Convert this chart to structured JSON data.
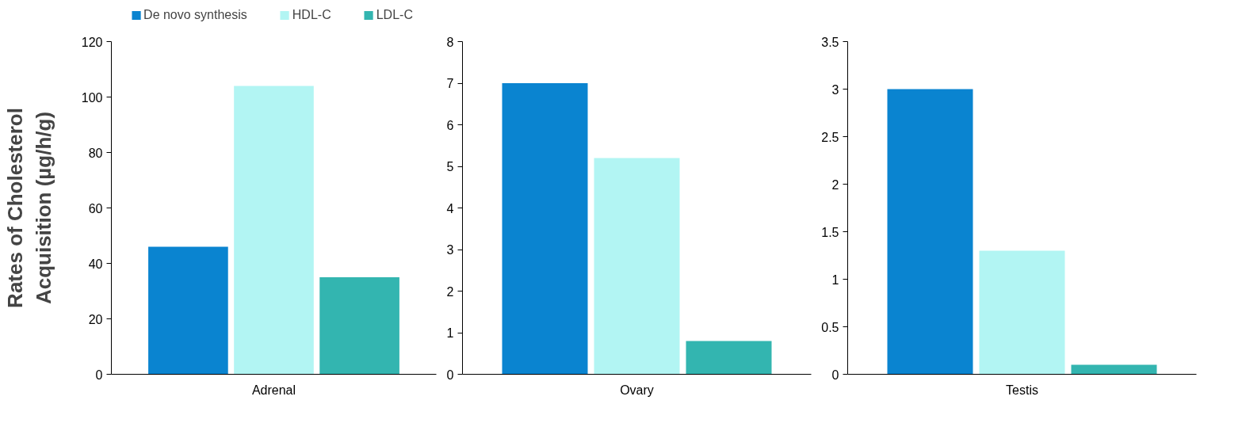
{
  "chart_data": [
    {
      "type": "bar",
      "categories": [
        "Adrenal"
      ],
      "ylabel": "Rates of Cholesterol\nAcquisition (µg/h/g)",
      "ylim": [
        0,
        120
      ],
      "yticks": [
        0,
        20,
        40,
        60,
        80,
        100,
        120
      ],
      "legend": "top",
      "grid": false,
      "series": [
        {
          "name": "De novo synthesis",
          "color": "#0a84d0",
          "values": [
            46
          ]
        },
        {
          "name": "HDL-C",
          "color": "#b2f5f3",
          "values": [
            104
          ]
        },
        {
          "name": "LDL-C",
          "color": "#33b5b0",
          "values": [
            35
          ]
        }
      ]
    },
    {
      "type": "bar",
      "categories": [
        "Ovary"
      ],
      "ylim": [
        0,
        8
      ],
      "yticks": [
        0,
        1,
        2,
        3,
        4,
        5,
        6,
        7,
        8
      ],
      "grid": false,
      "series": [
        {
          "color": "#0a84d0",
          "values": [
            7
          ]
        },
        {
          "color": "#b2f5f3",
          "values": [
            5.2
          ]
        },
        {
          "color": "#33b5b0",
          "values": [
            0.8
          ]
        }
      ]
    },
    {
      "type": "bar",
      "categories": [
        "Testis"
      ],
      "ylim": [
        0,
        3.5
      ],
      "yticks": [
        0,
        0.5,
        1,
        1.5,
        2,
        2.5,
        3,
        3.5
      ],
      "grid": false,
      "series": [
        {
          "color": "#0a84d0",
          "values": [
            3
          ]
        },
        {
          "color": "#b2f5f3",
          "values": [
            1.3
          ]
        },
        {
          "color": "#33b5b0",
          "values": [
            0.1
          ]
        }
      ]
    }
  ]
}
